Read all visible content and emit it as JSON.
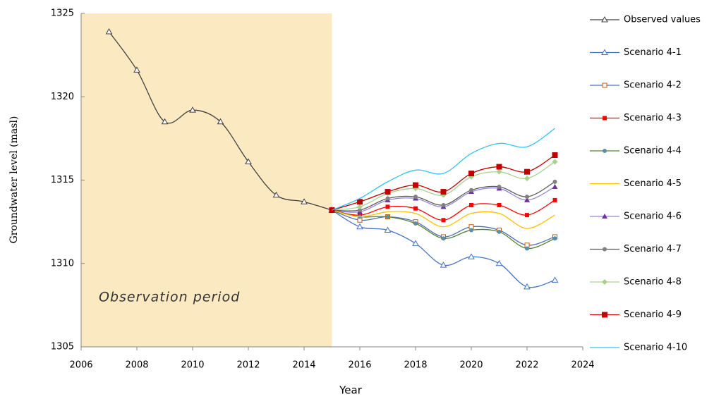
{
  "chart_data": {
    "type": "line",
    "xlabel": "Year",
    "ylabel": "Groundwater level (masl)",
    "annotation": "Observation period",
    "shade": {
      "range": [
        2006,
        2015
      ],
      "color": "#fbe9c2"
    },
    "xlim": [
      2006,
      2024
    ],
    "xticks": [
      2006,
      2008,
      2010,
      2012,
      2014,
      2016,
      2018,
      2020,
      2022,
      2024
    ],
    "ylim": [
      1305,
      1325
    ],
    "yticks": [
      1305,
      1310,
      1315,
      1320,
      1325
    ],
    "x": [
      2007,
      2008,
      2009,
      2010,
      2011,
      2012,
      2013,
      2014,
      2015,
      2016,
      2017,
      2018,
      2019,
      2020,
      2021,
      2022,
      2023
    ],
    "series": [
      {
        "name": "Observed values",
        "color": "#404040",
        "marker": "triangle-open",
        "marker_color": "#404040",
        "values": [
          1323.9,
          1321.6,
          1318.5,
          1319.2,
          1318.5,
          1316.1,
          1314.1,
          1313.7,
          1313.2,
          null,
          null,
          null,
          null,
          null,
          null,
          null,
          null
        ]
      },
      {
        "name": "Scenario 4-1",
        "color": "#4472c4",
        "marker": "triangle-open",
        "marker_color": "#4472c4",
        "values": [
          null,
          null,
          null,
          null,
          null,
          null,
          null,
          null,
          1313.2,
          1312.2,
          1312.0,
          1311.2,
          1309.9,
          1310.4,
          1310.0,
          1308.6,
          1309.0
        ]
      },
      {
        "name": "Scenario 4-2",
        "color": "#4f6fb3",
        "marker": "square-open",
        "marker_color": "#c55a11",
        "values": [
          null,
          null,
          null,
          null,
          null,
          null,
          null,
          null,
          1313.2,
          1312.6,
          1312.8,
          1312.5,
          1311.6,
          1312.2,
          1312.0,
          1311.1,
          1311.6
        ]
      },
      {
        "name": "Scenario 4-3",
        "color": "#ff0000",
        "marker": "square",
        "marker_color": "#ff0000",
        "values": [
          null,
          null,
          null,
          null,
          null,
          null,
          null,
          null,
          1313.2,
          1312.9,
          1313.4,
          1313.3,
          1312.6,
          1313.5,
          1313.5,
          1312.9,
          1313.8
        ]
      },
      {
        "name": "Scenario 4-4",
        "color": "#548235",
        "marker": "circle",
        "marker_color": "#5b8fa8",
        "values": [
          null,
          null,
          null,
          null,
          null,
          null,
          null,
          null,
          1313.2,
          1312.8,
          1312.8,
          1312.4,
          1311.5,
          1312.0,
          1311.9,
          1310.9,
          1311.5
        ]
      },
      {
        "name": "Scenario 4-5",
        "color": "#ffc000",
        "marker": "none",
        "marker_color": "#ffc000",
        "values": [
          null,
          null,
          null,
          null,
          null,
          null,
          null,
          null,
          1313.2,
          1312.8,
          1313.1,
          1313.0,
          1312.2,
          1313.0,
          1313.0,
          1312.1,
          1312.9
        ]
      },
      {
        "name": "Scenario 4-6",
        "color": "#8e86d6",
        "marker": "triangle",
        "marker_color": "#7030a0",
        "values": [
          null,
          null,
          null,
          null,
          null,
          null,
          null,
          null,
          1313.2,
          1313.1,
          1313.8,
          1313.9,
          1313.4,
          1314.3,
          1314.5,
          1313.8,
          1314.6
        ]
      },
      {
        "name": "Scenario 4-7",
        "color": "#595959",
        "marker": "circle",
        "marker_color": "#7f7f7f",
        "values": [
          null,
          null,
          null,
          null,
          null,
          null,
          null,
          null,
          1313.2,
          1313.2,
          1313.9,
          1314.0,
          1313.5,
          1314.4,
          1314.6,
          1314.0,
          1314.9
        ]
      },
      {
        "name": "Scenario 4-8",
        "color": "#a9d18e",
        "marker": "diamond",
        "marker_color": "#a9d18e",
        "values": [
          null,
          null,
          null,
          null,
          null,
          null,
          null,
          null,
          1313.2,
          1313.4,
          1314.2,
          1314.5,
          1314.1,
          1315.2,
          1315.5,
          1315.1,
          1316.1
        ]
      },
      {
        "name": "Scenario 4-9",
        "color": "#c00000",
        "marker": "square-big",
        "marker_color": "#c00000",
        "values": [
          null,
          null,
          null,
          null,
          null,
          null,
          null,
          null,
          1313.2,
          1313.7,
          1314.3,
          1314.7,
          1314.3,
          1315.4,
          1315.8,
          1315.5,
          1316.5
        ]
      },
      {
        "name": "Scenario 4-10",
        "color": "#33c3f0",
        "marker": "none",
        "marker_color": "#33c3f0",
        "values": [
          null,
          null,
          null,
          null,
          null,
          null,
          null,
          null,
          1313.2,
          1313.9,
          1314.9,
          1315.6,
          1315.4,
          1316.6,
          1317.2,
          1317.0,
          1318.1
        ]
      }
    ]
  }
}
